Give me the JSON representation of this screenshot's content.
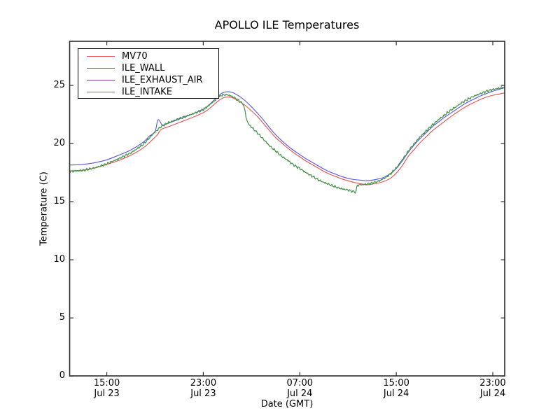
{
  "figure": {
    "title": "APOLLO ILE Temperatures",
    "xlabel": "Date (GMT)",
    "ylabel": "Temperature (C)",
    "background_color": "#ffffff",
    "frame_color": "#2b2b2b"
  },
  "legend": {
    "position": "upper left",
    "entries": [
      {
        "label": "MV70",
        "color": "#e25050"
      },
      {
        "label": "ILE_WALL",
        "color": "#5555e6"
      },
      {
        "label": "ILE_EXHAUST_AIR",
        "color": "#8040a8"
      },
      {
        "label": "ILE_INTAKE",
        "color": "#3f9f3f"
      }
    ]
  },
  "chart_data": {
    "type": "line",
    "title": "APOLLO ILE Temperatures",
    "xlabel": "Date (GMT)",
    "ylabel": "Temperature (C)",
    "grid": false,
    "legend_position": "upper left",
    "ylim": [
      0,
      28.8
    ],
    "y_ticks": [
      0,
      5,
      10,
      15,
      20,
      25
    ],
    "x_unit_hours_since": "Jul 23 12:00 GMT",
    "x_range_hours": [
      -0.1,
      36
    ],
    "x_ticks": [
      {
        "t": 3,
        "time": "15:00",
        "date": "Jul 23"
      },
      {
        "t": 11,
        "time": "23:00",
        "date": "Jul 23"
      },
      {
        "t": 19,
        "time": "07:00",
        "date": "Jul 24"
      },
      {
        "t": 27,
        "time": "15:00",
        "date": "Jul 24"
      },
      {
        "t": 35,
        "time": "23:00",
        "date": "Jul 24"
      }
    ],
    "series": [
      {
        "name": "MV70",
        "color": "#e25050",
        "noise": 0,
        "points": [
          [
            -0.1,
            17.65
          ],
          [
            0,
            17.65
          ],
          [
            1,
            17.7
          ],
          [
            2,
            17.9
          ],
          [
            3,
            18.2
          ],
          [
            4,
            18.55
          ],
          [
            5,
            19.0
          ],
          [
            6,
            19.6
          ],
          [
            6.5,
            20.05
          ],
          [
            7,
            20.55
          ],
          [
            7.2,
            20.75
          ],
          [
            7.45,
            21.15
          ],
          [
            7.7,
            21.3
          ],
          [
            8,
            21.4
          ],
          [
            9,
            21.8
          ],
          [
            10,
            22.2
          ],
          [
            11,
            22.65
          ],
          [
            11.5,
            23.0
          ],
          [
            12,
            23.45
          ],
          [
            12.5,
            23.85
          ],
          [
            13,
            24.0
          ],
          [
            13.5,
            23.9
          ],
          [
            14,
            23.6
          ],
          [
            14.5,
            23.25
          ],
          [
            15,
            22.8
          ],
          [
            15.5,
            22.3
          ],
          [
            16,
            21.7
          ],
          [
            16.5,
            21.1
          ],
          [
            17,
            20.5
          ],
          [
            17.5,
            20.05
          ],
          [
            18,
            19.6
          ],
          [
            18.5,
            19.2
          ],
          [
            19,
            18.85
          ],
          [
            19.5,
            18.5
          ],
          [
            20,
            18.2
          ],
          [
            20.5,
            17.9
          ],
          [
            21,
            17.6
          ],
          [
            21.5,
            17.35
          ],
          [
            22,
            17.15
          ],
          [
            22.5,
            16.95
          ],
          [
            23,
            16.8
          ],
          [
            23.5,
            16.65
          ],
          [
            24,
            16.55
          ],
          [
            24.5,
            16.45
          ],
          [
            25,
            16.5
          ],
          [
            25.5,
            16.6
          ],
          [
            26,
            16.75
          ],
          [
            26.5,
            17.0
          ],
          [
            27,
            17.45
          ],
          [
            27.5,
            18.1
          ],
          [
            28,
            18.9
          ],
          [
            28.5,
            19.5
          ],
          [
            29,
            20.1
          ],
          [
            29.5,
            20.6
          ],
          [
            30,
            21.1
          ],
          [
            30.5,
            21.5
          ],
          [
            31,
            21.9
          ],
          [
            31.5,
            22.3
          ],
          [
            32,
            22.65
          ],
          [
            32.5,
            23.0
          ],
          [
            33,
            23.3
          ],
          [
            33.5,
            23.55
          ],
          [
            34,
            23.8
          ],
          [
            34.5,
            24.0
          ],
          [
            35,
            24.15
          ],
          [
            35.5,
            24.25
          ],
          [
            36,
            24.35
          ]
        ]
      },
      {
        "name": "ILE_WALL",
        "color": "#5555e6",
        "noise": 0,
        "points": [
          [
            -0.1,
            18.15
          ],
          [
            0,
            18.15
          ],
          [
            1,
            18.2
          ],
          [
            2,
            18.35
          ],
          [
            3,
            18.6
          ],
          [
            4,
            19.0
          ],
          [
            5,
            19.45
          ],
          [
            6,
            20.1
          ],
          [
            6.5,
            20.6
          ],
          [
            7,
            21.05
          ],
          [
            7.2,
            21.95
          ],
          [
            7.35,
            22.0
          ],
          [
            7.6,
            21.6
          ],
          [
            8,
            21.7
          ],
          [
            9,
            22.1
          ],
          [
            10,
            22.5
          ],
          [
            11,
            22.95
          ],
          [
            11.5,
            23.35
          ],
          [
            12,
            23.85
          ],
          [
            12.5,
            24.3
          ],
          [
            13,
            24.45
          ],
          [
            13.5,
            24.35
          ],
          [
            14,
            24.05
          ],
          [
            14.5,
            23.65
          ],
          [
            15,
            23.15
          ],
          [
            15.5,
            22.6
          ],
          [
            16,
            22.0
          ],
          [
            16.5,
            21.35
          ],
          [
            17,
            20.75
          ],
          [
            17.5,
            20.25
          ],
          [
            18,
            19.8
          ],
          [
            18.5,
            19.4
          ],
          [
            19,
            19.05
          ],
          [
            19.5,
            18.7
          ],
          [
            20,
            18.4
          ],
          [
            20.5,
            18.1
          ],
          [
            21,
            17.8
          ],
          [
            21.5,
            17.55
          ],
          [
            22,
            17.35
          ],
          [
            22.5,
            17.15
          ],
          [
            23,
            17.0
          ],
          [
            23.5,
            16.9
          ],
          [
            24,
            16.85
          ],
          [
            24.5,
            16.8
          ],
          [
            25,
            16.85
          ],
          [
            25.5,
            16.95
          ],
          [
            26,
            17.1
          ],
          [
            26.5,
            17.4
          ],
          [
            27,
            17.85
          ],
          [
            27.5,
            18.5
          ],
          [
            28,
            19.25
          ],
          [
            28.5,
            19.9
          ],
          [
            29,
            20.45
          ],
          [
            29.5,
            20.95
          ],
          [
            30,
            21.45
          ],
          [
            30.5,
            21.85
          ],
          [
            31,
            22.25
          ],
          [
            31.5,
            22.6
          ],
          [
            32,
            22.95
          ],
          [
            32.5,
            23.3
          ],
          [
            33,
            23.6
          ],
          [
            33.5,
            23.85
          ],
          [
            34,
            24.1
          ],
          [
            34.5,
            24.3
          ],
          [
            35,
            24.5
          ],
          [
            35.5,
            24.65
          ],
          [
            36,
            24.8
          ]
        ]
      },
      {
        "name": "ILE_EXHAUST_AIR",
        "color": "#8040a8",
        "noise": 0.11,
        "points": [
          [
            -0.1,
            17.6
          ],
          [
            0,
            17.6
          ],
          [
            1,
            17.68
          ],
          [
            2,
            17.9
          ],
          [
            3,
            18.25
          ],
          [
            4,
            18.7
          ],
          [
            5,
            19.2
          ],
          [
            6,
            19.9
          ],
          [
            6.5,
            20.45
          ],
          [
            7,
            21.0
          ],
          [
            7.5,
            21.45
          ],
          [
            8,
            21.75
          ],
          [
            9,
            22.15
          ],
          [
            10,
            22.5
          ],
          [
            11,
            22.9
          ],
          [
            11.5,
            23.3
          ],
          [
            12,
            23.75
          ],
          [
            12.5,
            24.15
          ],
          [
            13,
            24.2
          ],
          [
            13.5,
            24.0
          ],
          [
            14,
            23.65
          ],
          [
            14.3,
            23.4
          ],
          [
            14.45,
            22.85
          ],
          [
            14.6,
            22.0
          ],
          [
            14.8,
            21.6
          ],
          [
            15,
            21.4
          ],
          [
            15.5,
            20.9
          ],
          [
            16,
            20.35
          ],
          [
            16.5,
            19.8
          ],
          [
            17,
            19.35
          ],
          [
            17.5,
            18.9
          ],
          [
            18,
            18.55
          ],
          [
            18.5,
            18.15
          ],
          [
            19,
            17.85
          ],
          [
            19.5,
            17.5
          ],
          [
            20,
            17.2
          ],
          [
            20.5,
            16.9
          ],
          [
            21,
            16.65
          ],
          [
            21.5,
            16.45
          ],
          [
            22,
            16.25
          ],
          [
            22.5,
            16.1
          ],
          [
            23,
            16.0
          ],
          [
            23.5,
            15.85
          ],
          [
            23.65,
            15.8
          ],
          [
            23.75,
            16.4
          ],
          [
            24,
            16.45
          ],
          [
            24.5,
            16.5
          ],
          [
            25,
            16.6
          ],
          [
            25.5,
            16.75
          ],
          [
            26,
            17.0
          ],
          [
            26.5,
            17.35
          ],
          [
            27,
            17.9
          ],
          [
            27.5,
            18.6
          ],
          [
            28,
            19.35
          ],
          [
            28.5,
            20.0
          ],
          [
            29,
            20.6
          ],
          [
            29.5,
            21.1
          ],
          [
            30,
            21.6
          ],
          [
            30.5,
            22.05
          ],
          [
            31,
            22.45
          ],
          [
            31.5,
            22.85
          ],
          [
            32,
            23.2
          ],
          [
            32.5,
            23.55
          ],
          [
            33,
            23.85
          ],
          [
            33.5,
            24.1
          ],
          [
            34,
            24.3
          ],
          [
            34.5,
            24.5
          ],
          [
            35,
            24.65
          ],
          [
            35.5,
            24.75
          ],
          [
            36,
            24.85
          ]
        ]
      },
      {
        "name": "ILE_INTAKE",
        "color": "#3f9f3f",
        "noise": 0.11,
        "points": [
          [
            -0.1,
            17.6
          ],
          [
            0,
            17.6
          ],
          [
            1,
            17.68
          ],
          [
            2,
            17.9
          ],
          [
            3,
            18.25
          ],
          [
            4,
            18.7
          ],
          [
            5,
            19.2
          ],
          [
            6,
            19.9
          ],
          [
            6.5,
            20.45
          ],
          [
            7,
            21.0
          ],
          [
            7.5,
            21.45
          ],
          [
            8,
            21.75
          ],
          [
            9,
            22.15
          ],
          [
            10,
            22.5
          ],
          [
            11,
            22.9
          ],
          [
            11.5,
            23.3
          ],
          [
            12,
            23.75
          ],
          [
            12.5,
            24.15
          ],
          [
            13,
            24.2
          ],
          [
            13.5,
            24.0
          ],
          [
            14,
            23.65
          ],
          [
            14.3,
            23.4
          ],
          [
            14.45,
            22.85
          ],
          [
            14.6,
            22.0
          ],
          [
            14.8,
            21.6
          ],
          [
            15,
            21.4
          ],
          [
            15.5,
            20.9
          ],
          [
            16,
            20.35
          ],
          [
            16.5,
            19.8
          ],
          [
            17,
            19.35
          ],
          [
            17.5,
            18.9
          ],
          [
            18,
            18.55
          ],
          [
            18.5,
            18.15
          ],
          [
            19,
            17.85
          ],
          [
            19.5,
            17.5
          ],
          [
            20,
            17.2
          ],
          [
            20.5,
            16.9
          ],
          [
            21,
            16.65
          ],
          [
            21.5,
            16.45
          ],
          [
            22,
            16.25
          ],
          [
            22.5,
            16.1
          ],
          [
            23,
            16.0
          ],
          [
            23.5,
            15.85
          ],
          [
            23.65,
            15.8
          ],
          [
            23.75,
            16.4
          ],
          [
            24,
            16.45
          ],
          [
            24.5,
            16.5
          ],
          [
            25,
            16.6
          ],
          [
            25.5,
            16.75
          ],
          [
            26,
            17.0
          ],
          [
            26.5,
            17.35
          ],
          [
            27,
            17.9
          ],
          [
            27.5,
            18.6
          ],
          [
            28,
            19.35
          ],
          [
            28.5,
            20.0
          ],
          [
            29,
            20.6
          ],
          [
            29.5,
            21.1
          ],
          [
            30,
            21.6
          ],
          [
            30.5,
            22.05
          ],
          [
            31,
            22.45
          ],
          [
            31.5,
            22.85
          ],
          [
            32,
            23.2
          ],
          [
            32.5,
            23.55
          ],
          [
            33,
            23.85
          ],
          [
            33.5,
            24.1
          ],
          [
            34,
            24.3
          ],
          [
            34.5,
            24.5
          ],
          [
            35,
            24.65
          ],
          [
            35.5,
            24.75
          ],
          [
            36,
            24.85
          ]
        ]
      }
    ]
  }
}
